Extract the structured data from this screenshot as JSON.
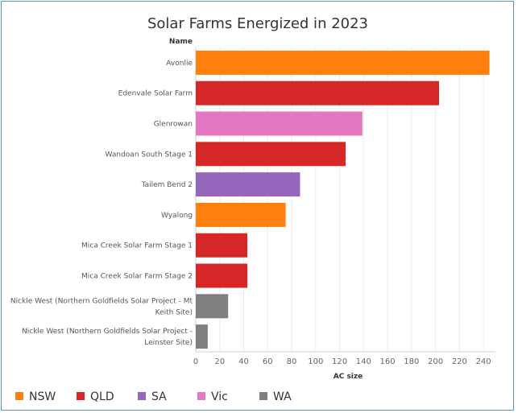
{
  "chart_data": {
    "type": "bar",
    "orientation": "horizontal",
    "title": "Solar Farms Energized in 2023",
    "ylabel": "Name",
    "xlabel": "AC size",
    "xlim": [
      0,
      250
    ],
    "xticks": [
      0,
      20,
      40,
      60,
      80,
      100,
      120,
      140,
      160,
      180,
      200,
      220,
      240
    ],
    "grid": true,
    "categories": [
      {
        "lines": [
          "Avonlie"
        ],
        "value": 245,
        "state": "NSW"
      },
      {
        "lines": [
          "Edenvale Solar Farm"
        ],
        "value": 203,
        "state": "QLD"
      },
      {
        "lines": [
          "Glenrowan"
        ],
        "value": 139,
        "state": "Vic"
      },
      {
        "lines": [
          "Wandoan South Stage 1"
        ],
        "value": 125,
        "state": "QLD"
      },
      {
        "lines": [
          "Tailem Bend 2"
        ],
        "value": 87,
        "state": "SA"
      },
      {
        "lines": [
          "Wyalong"
        ],
        "value": 75,
        "state": "NSW"
      },
      {
        "lines": [
          "Mica Creek Solar Farm Stage 1"
        ],
        "value": 43,
        "state": "QLD"
      },
      {
        "lines": [
          "Mica Creek Solar Farm Stage 2"
        ],
        "value": 43,
        "state": "QLD"
      },
      {
        "lines": [
          "Nickle West (Northern Goldfields Solar Project - Mt",
          "Keith Site)"
        ],
        "value": 27,
        "state": "WA"
      },
      {
        "lines": [
          "Nickle West (Northern Goldfields Solar Project -",
          "Leinster Site)"
        ],
        "value": 10,
        "state": "WA"
      }
    ],
    "legend": [
      {
        "name": "NSW",
        "color": "#ff7f0e"
      },
      {
        "name": "QLD",
        "color": "#d62728"
      },
      {
        "name": "SA",
        "color": "#9467bd"
      },
      {
        "name": "Vic",
        "color": "#e377c2"
      },
      {
        "name": "WA",
        "color": "#7f7f7f"
      }
    ],
    "legend_position": "bottom"
  }
}
